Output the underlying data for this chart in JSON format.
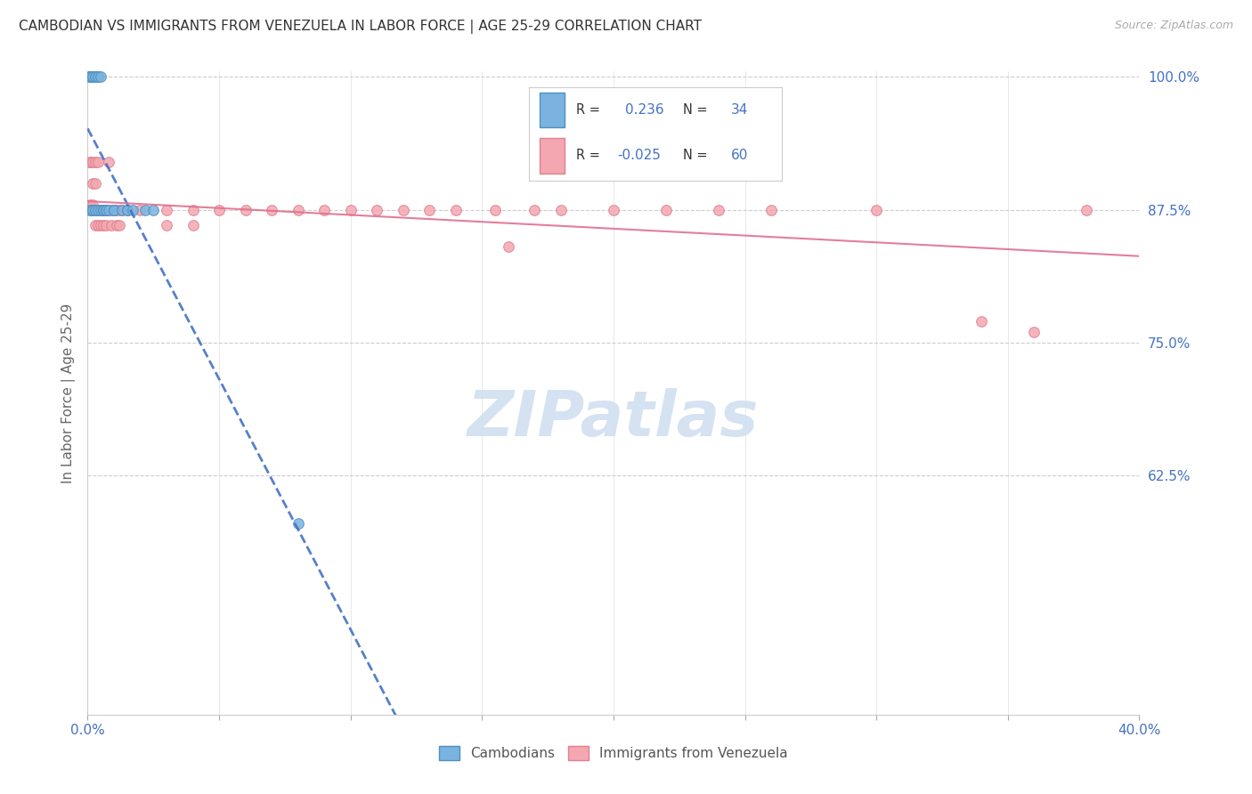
{
  "title": "CAMBODIAN VS IMMIGRANTS FROM VENEZUELA IN LABOR FORCE | AGE 25-29 CORRELATION CHART",
  "source": "Source: ZipAtlas.com",
  "ylabel": "In Labor Force | Age 25-29",
  "title_color": "#333333",
  "source_color": "#aaaaaa",
  "axis_label_color": "#4472c4",
  "scatter_label_color": "#555555",
  "cambodian_color": "#7ab3e0",
  "venezuela_color": "#f4a7b0",
  "trend_blue": "#4472c4",
  "trend_pink": "#e07090",
  "xlim": [
    0.0,
    0.4
  ],
  "ylim": [
    0.4,
    1.005
  ],
  "xtick_positions": [
    0.0,
    0.05,
    0.1,
    0.15,
    0.2,
    0.25,
    0.3,
    0.35,
    0.4
  ],
  "xticklabels": [
    "0.0%",
    "",
    "",
    "",
    "",
    "",
    "",
    "",
    "40.0%"
  ],
  "ytick_positions": [
    0.625,
    0.75,
    0.875,
    1.0
  ],
  "yticklabels": [
    "62.5%",
    "75.0%",
    "87.5%",
    "100.0%"
  ],
  "grid_color": "#cccccc",
  "watermark_color": "#d0dff0",
  "cambodian_R": 0.236,
  "cambodian_N": 34,
  "venezuela_R": -0.025,
  "venezuela_N": 60,
  "cam_x": [
    0.001,
    0.001,
    0.001,
    0.001,
    0.001,
    0.001,
    0.002,
    0.002,
    0.002,
    0.002,
    0.003,
    0.003,
    0.003,
    0.003,
    0.004,
    0.004,
    0.004,
    0.005,
    0.005,
    0.006,
    0.006,
    0.006,
    0.007,
    0.007,
    0.008,
    0.01,
    0.01,
    0.013,
    0.015,
    0.015,
    0.017,
    0.022,
    0.025,
    0.08
  ],
  "cam_y": [
    1.0,
    1.0,
    1.0,
    1.0,
    1.0,
    0.875,
    1.0,
    1.0,
    0.875,
    0.875,
    1.0,
    1.0,
    0.875,
    0.875,
    1.0,
    1.0,
    0.875,
    1.0,
    0.875,
    0.875,
    0.875,
    0.875,
    0.875,
    0.875,
    0.875,
    0.875,
    0.875,
    0.875,
    0.875,
    0.875,
    0.875,
    0.875,
    0.875,
    0.58
  ],
  "ven_x": [
    0.001,
    0.001,
    0.001,
    0.001,
    0.002,
    0.002,
    0.002,
    0.002,
    0.002,
    0.003,
    0.003,
    0.003,
    0.003,
    0.004,
    0.004,
    0.004,
    0.005,
    0.005,
    0.006,
    0.006,
    0.007,
    0.007,
    0.008,
    0.008,
    0.009,
    0.009,
    0.01,
    0.011,
    0.011,
    0.012,
    0.012,
    0.013,
    0.015,
    0.02,
    0.03,
    0.03,
    0.04,
    0.04,
    0.05,
    0.06,
    0.07,
    0.08,
    0.09,
    0.1,
    0.11,
    0.12,
    0.13,
    0.14,
    0.155,
    0.16,
    0.17,
    0.18,
    0.2,
    0.22,
    0.24,
    0.26,
    0.3,
    0.34,
    0.36,
    0.38
  ],
  "ven_y": [
    0.92,
    0.92,
    0.88,
    0.875,
    0.92,
    0.9,
    0.88,
    0.875,
    0.875,
    0.92,
    0.9,
    0.875,
    0.86,
    0.92,
    0.875,
    0.86,
    0.875,
    0.86,
    0.875,
    0.86,
    0.875,
    0.86,
    0.92,
    0.875,
    0.875,
    0.86,
    0.875,
    0.875,
    0.86,
    0.875,
    0.86,
    0.875,
    0.875,
    0.875,
    0.875,
    0.86,
    0.875,
    0.86,
    0.875,
    0.875,
    0.875,
    0.875,
    0.875,
    0.875,
    0.875,
    0.875,
    0.875,
    0.875,
    0.875,
    0.84,
    0.875,
    0.875,
    0.875,
    0.875,
    0.875,
    0.875,
    0.875,
    0.77,
    0.76,
    0.875
  ]
}
